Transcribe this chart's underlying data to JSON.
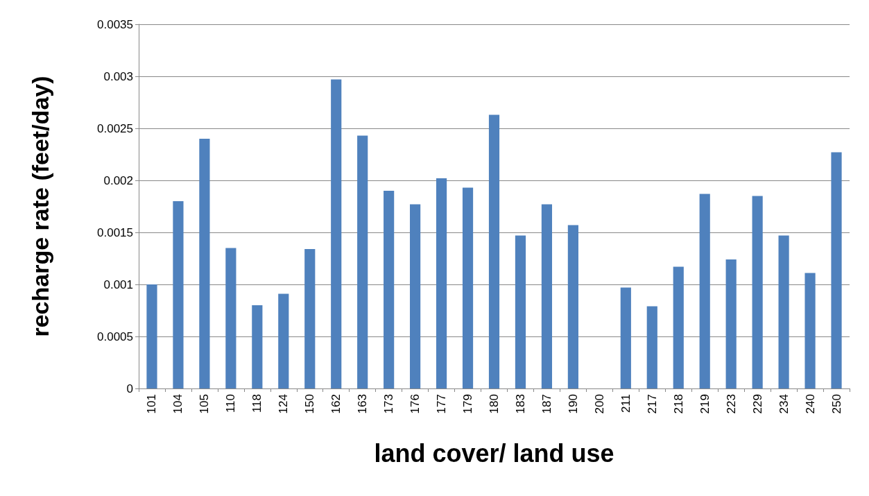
{
  "chart_data": {
    "type": "bar",
    "xlabel": "land cover/ land use",
    "ylabel": "recharge rate (feet/day)",
    "categories": [
      "101",
      "104",
      "105",
      "110",
      "118",
      "124",
      "150",
      "162",
      "163",
      "173",
      "176",
      "177",
      "179",
      "180",
      "183",
      "187",
      "190",
      "200",
      "211",
      "217",
      "218",
      "219",
      "223",
      "229",
      "234",
      "240",
      "250"
    ],
    "values": [
      0.001,
      0.0018,
      0.0024,
      0.00135,
      0.0008,
      0.00091,
      0.00134,
      0.00297,
      0.00243,
      0.0019,
      0.00177,
      0.00202,
      0.00193,
      0.00263,
      0.00147,
      0.00177,
      0.00157,
      0,
      0.00097,
      0.00079,
      0.00117,
      0.00187,
      0.00124,
      0.00185,
      0.00147,
      0.00111,
      0.00227
    ],
    "color": "#4f81bd",
    "ylim": [
      0,
      0.0035
    ],
    "yticks": [
      0,
      0.0005,
      0.001,
      0.0015,
      0.002,
      0.0025,
      0.003,
      0.0035
    ],
    "grid": "y"
  }
}
